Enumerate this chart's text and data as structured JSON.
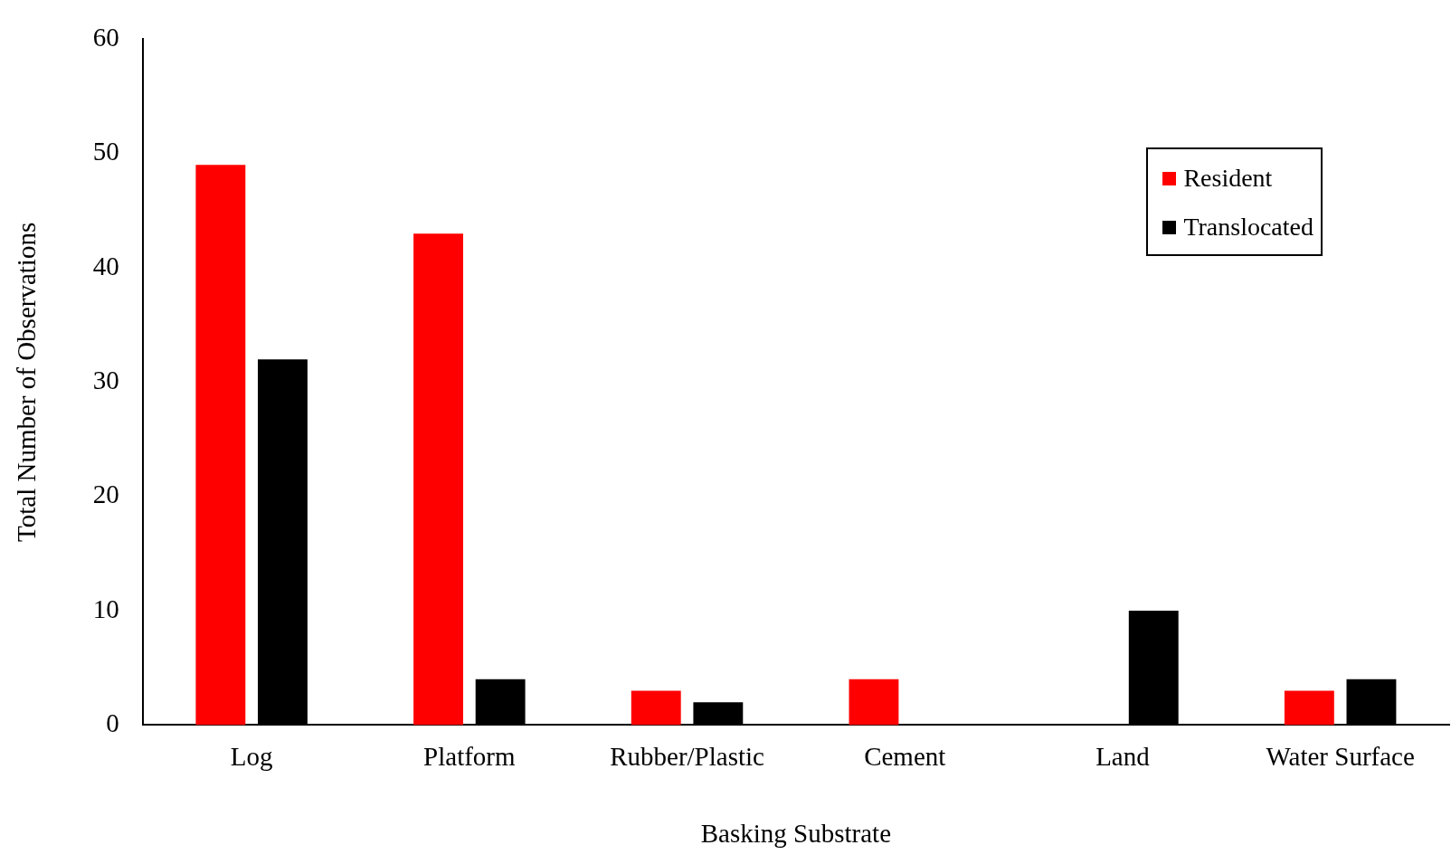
{
  "chart_data": {
    "type": "bar",
    "xlabel": "Basking Substrate",
    "ylabel": "Total Number of Observations",
    "categories": [
      "Log",
      "Platform",
      "Rubber/Plastic",
      "Cement",
      "Land",
      "Water Surface"
    ],
    "series": [
      {
        "name": "Resident",
        "color": "#ff0000",
        "values": [
          49,
          43,
          3,
          4,
          0,
          3
        ]
      },
      {
        "name": "Translocated",
        "color": "#000000",
        "values": [
          32,
          4,
          2,
          0,
          10,
          4
        ]
      }
    ],
    "ylim": [
      0,
      60
    ],
    "yticks": [
      0,
      10,
      20,
      30,
      40,
      50,
      60
    ],
    "grid": false,
    "legend": "top right"
  }
}
